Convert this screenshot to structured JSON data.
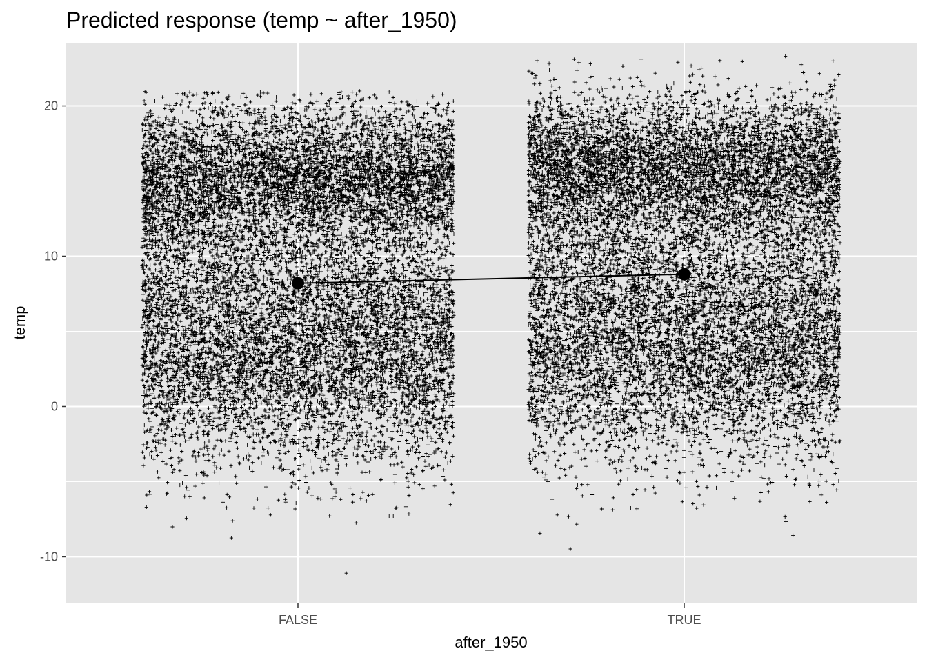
{
  "chart_data": {
    "type": "scatter",
    "title": "Predicted response (temp ~ after_1950)",
    "xlabel": "after_1950",
    "ylabel": "temp",
    "categories": [
      "FALSE",
      "TRUE"
    ],
    "y_ticks": [
      -10,
      0,
      10,
      20
    ],
    "ylim": [
      -13.1,
      24.2
    ],
    "grid": true,
    "colors": {
      "panel": "#e5e5e5",
      "grid": "#ffffff",
      "points": "#000000",
      "tick_text": "#4d4d4d"
    },
    "point_marker": "plus",
    "groups": [
      {
        "category": "FALSE",
        "n_points_approx": 13000,
        "y_range": [
          -11.6,
          21.0
        ],
        "mean": 8.2,
        "jitter_width": 0.4
      },
      {
        "category": "TRUE",
        "n_points_approx": 13000,
        "y_range": [
          -11.6,
          23.3
        ],
        "mean": 8.8,
        "jitter_width": 0.4
      }
    ],
    "fit_line": {
      "x": [
        "FALSE",
        "TRUE"
      ],
      "y": [
        8.2,
        8.8
      ]
    }
  }
}
